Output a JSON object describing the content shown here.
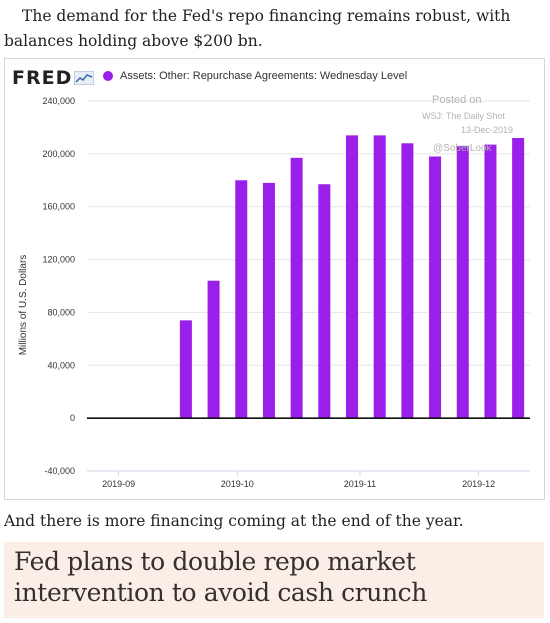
{
  "intro_text": "The demand for the Fed's repo financing remains robust, with balances holding above $200 bn.",
  "chart": {
    "logo": "FRED",
    "legend_label": "Assets: Other: Repurchase Agreements: Wednesday Level",
    "watermark": {
      "line1": "Posted on",
      "line2": "WSJ: The Daily Shot",
      "line3": "13-Dec-2019",
      "line4": "@SoberLook"
    }
  },
  "chart_data": {
    "type": "bar",
    "title": "",
    "ylabel": "Millions of U.S. Dollars",
    "xlabel": "",
    "ylim": [
      -40000,
      240000
    ],
    "yticks": [
      -40000,
      0,
      40000,
      80000,
      120000,
      160000,
      200000,
      240000
    ],
    "ytick_labels": [
      "-40,000",
      "0",
      "40,000",
      "80,000",
      "120,000",
      "160,000",
      "200,000",
      "240,000"
    ],
    "xtick_labels": [
      "2019-09",
      "2019-10",
      "2019-11",
      "2019-12"
    ],
    "series": [
      {
        "color": "#9a1fe8",
        "x": [
          "2019-09-18",
          "2019-09-25",
          "2019-10-02",
          "2019-10-09",
          "2019-10-16",
          "2019-10-23",
          "2019-10-30",
          "2019-11-06",
          "2019-11-13",
          "2019-11-20",
          "2019-11-27",
          "2019-12-04",
          "2019-12-11"
        ],
        "values": [
          74000,
          104000,
          180000,
          178000,
          197000,
          177000,
          214000,
          214000,
          208000,
          198000,
          206000,
          207000,
          212000
        ]
      }
    ],
    "grid": true,
    "legend_position": "top-left"
  },
  "outro_text": "And there is more financing coming at the end of the year.",
  "headline": "Fed plans to double repo market intervention to avoid cash crunch"
}
